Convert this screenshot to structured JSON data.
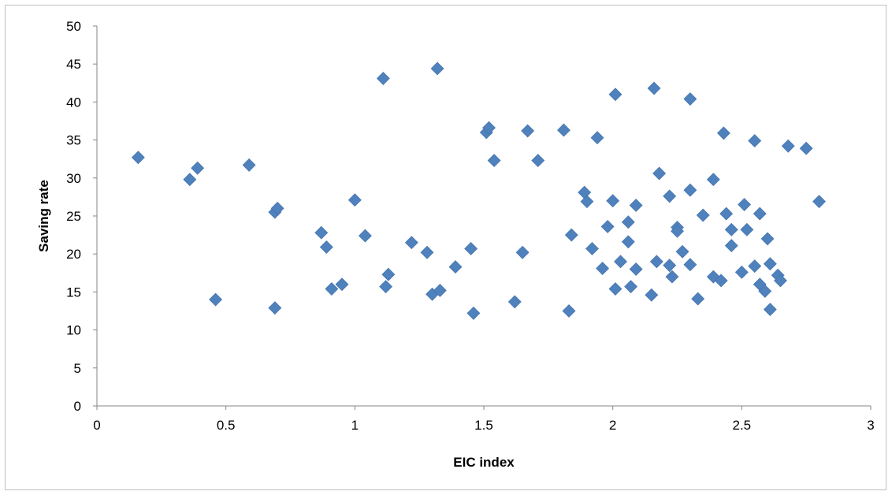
{
  "chart_data": {
    "type": "scatter",
    "title": "",
    "xlabel": "EIC index",
    "ylabel": "Saving rate",
    "xlim": [
      0,
      3
    ],
    "ylim": [
      0,
      50
    ],
    "x_ticks": [
      "0",
      "0.5",
      "1",
      "1.5",
      "2",
      "2.5",
      "3"
    ],
    "y_ticks": [
      "0",
      "5",
      "10",
      "15",
      "20",
      "25",
      "30",
      "35",
      "40",
      "45",
      "50"
    ],
    "grid": false,
    "legend": "none",
    "marker": "diamond",
    "marker_color": "#4f81bd",
    "points": [
      [
        0.16,
        32.7
      ],
      [
        0.36,
        29.8
      ],
      [
        0.39,
        31.3
      ],
      [
        0.46,
        14.0
      ],
      [
        0.59,
        31.7
      ],
      [
        0.69,
        25.5
      ],
      [
        0.7,
        26.0
      ],
      [
        0.69,
        12.9
      ],
      [
        0.87,
        22.8
      ],
      [
        0.89,
        20.9
      ],
      [
        0.91,
        15.4
      ],
      [
        0.95,
        16.0
      ],
      [
        1.0,
        27.1
      ],
      [
        1.04,
        22.4
      ],
      [
        1.11,
        43.1
      ],
      [
        1.12,
        15.7
      ],
      [
        1.13,
        17.3
      ],
      [
        1.22,
        21.5
      ],
      [
        1.28,
        20.2
      ],
      [
        1.3,
        14.7
      ],
      [
        1.32,
        44.4
      ],
      [
        1.33,
        15.2
      ],
      [
        1.39,
        18.3
      ],
      [
        1.45,
        20.7
      ],
      [
        1.46,
        12.2
      ],
      [
        1.51,
        36.0
      ],
      [
        1.52,
        36.6
      ],
      [
        1.54,
        32.3
      ],
      [
        1.62,
        13.7
      ],
      [
        1.65,
        20.2
      ],
      [
        1.67,
        36.2
      ],
      [
        1.71,
        32.3
      ],
      [
        1.81,
        36.3
      ],
      [
        1.83,
        12.5
      ],
      [
        1.84,
        22.5
      ],
      [
        1.89,
        28.1
      ],
      [
        1.9,
        26.9
      ],
      [
        1.92,
        20.7
      ],
      [
        1.94,
        35.3
      ],
      [
        1.96,
        18.1
      ],
      [
        1.98,
        23.6
      ],
      [
        2.0,
        27.0
      ],
      [
        2.01,
        15.4
      ],
      [
        2.01,
        41.0
      ],
      [
        2.03,
        19.0
      ],
      [
        2.06,
        21.6
      ],
      [
        2.06,
        24.2
      ],
      [
        2.07,
        15.7
      ],
      [
        2.09,
        18.0
      ],
      [
        2.09,
        26.4
      ],
      [
        2.15,
        14.6
      ],
      [
        2.16,
        41.8
      ],
      [
        2.17,
        19.0
      ],
      [
        2.18,
        30.6
      ],
      [
        2.22,
        27.6
      ],
      [
        2.22,
        18.5
      ],
      [
        2.23,
        17.0
      ],
      [
        2.25,
        23.5
      ],
      [
        2.25,
        23.0
      ],
      [
        2.27,
        20.3
      ],
      [
        2.3,
        40.4
      ],
      [
        2.3,
        28.4
      ],
      [
        2.3,
        18.6
      ],
      [
        2.33,
        14.1
      ],
      [
        2.35,
        25.1
      ],
      [
        2.39,
        17.0
      ],
      [
        2.39,
        29.8
      ],
      [
        2.42,
        16.5
      ],
      [
        2.43,
        35.9
      ],
      [
        2.44,
        25.3
      ],
      [
        2.46,
        23.2
      ],
      [
        2.46,
        21.1
      ],
      [
        2.5,
        17.6
      ],
      [
        2.51,
        26.5
      ],
      [
        2.52,
        23.2
      ],
      [
        2.55,
        34.9
      ],
      [
        2.55,
        18.4
      ],
      [
        2.57,
        25.3
      ],
      [
        2.57,
        16.0
      ],
      [
        2.59,
        15.1
      ],
      [
        2.6,
        22.0
      ],
      [
        2.61,
        18.7
      ],
      [
        2.61,
        12.7
      ],
      [
        2.64,
        17.2
      ],
      [
        2.65,
        16.5
      ],
      [
        2.68,
        34.2
      ],
      [
        2.75,
        33.9
      ],
      [
        2.8,
        26.9
      ]
    ]
  }
}
